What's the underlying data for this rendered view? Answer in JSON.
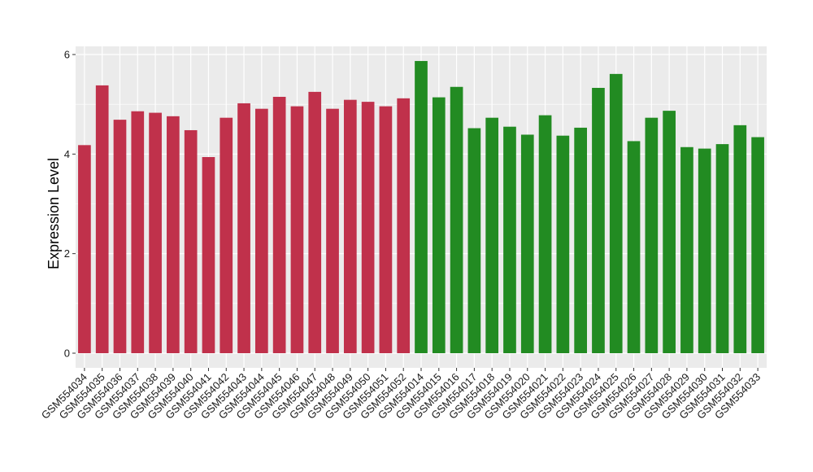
{
  "chart_data": {
    "type": "bar",
    "title": "",
    "xlabel": "",
    "ylabel": "Expression Level",
    "ylim": [
      0,
      6.2
    ],
    "yticks": [
      0,
      2,
      4,
      6
    ],
    "grid": true,
    "panel_background": "#ebebeb",
    "grid_color": "#ffffff",
    "legend": "none",
    "categories": [
      "GSM554034",
      "GSM554035",
      "GSM554036",
      "GSM554037",
      "GSM554038",
      "GSM554039",
      "GSM554040",
      "GSM554041",
      "GSM554042",
      "GSM554043",
      "GSM554044",
      "GSM554045",
      "GSM554046",
      "GSM554047",
      "GSM554048",
      "GSM554049",
      "GSM554050",
      "GSM554051",
      "GSM554052",
      "GSM554014",
      "GSM554015",
      "GSM554016",
      "GSM554017",
      "GSM554018",
      "GSM554019",
      "GSM554020",
      "GSM554021",
      "GSM554022",
      "GSM554023",
      "GSM554024",
      "GSM554025",
      "GSM554026",
      "GSM554027",
      "GSM554028",
      "GSM554029",
      "GSM554030",
      "GSM554031",
      "GSM554032",
      "GSM554033"
    ],
    "values": [
      4.18,
      5.38,
      4.69,
      4.86,
      4.83,
      4.76,
      4.48,
      3.94,
      4.73,
      5.02,
      4.91,
      5.15,
      4.96,
      5.25,
      4.91,
      5.09,
      5.05,
      4.96,
      5.12,
      5.87,
      5.14,
      5.35,
      4.52,
      4.73,
      4.55,
      4.39,
      4.78,
      4.37,
      4.53,
      5.33,
      5.61,
      4.26,
      4.73,
      4.87,
      4.14,
      4.11,
      4.2,
      4.58,
      4.34
    ],
    "bar_colors": [
      "#c0314b",
      "#c0314b",
      "#c0314b",
      "#c0314b",
      "#c0314b",
      "#c0314b",
      "#c0314b",
      "#c0314b",
      "#c0314b",
      "#c0314b",
      "#c0314b",
      "#c0314b",
      "#c0314b",
      "#c0314b",
      "#c0314b",
      "#c0314b",
      "#c0314b",
      "#c0314b",
      "#c0314b",
      "#228b22",
      "#228b22",
      "#228b22",
      "#228b22",
      "#228b22",
      "#228b22",
      "#228b22",
      "#228b22",
      "#228b22",
      "#228b22",
      "#228b22",
      "#228b22",
      "#228b22",
      "#228b22",
      "#228b22",
      "#228b22",
      "#228b22",
      "#228b22",
      "#228b22",
      "#228b22"
    ]
  }
}
